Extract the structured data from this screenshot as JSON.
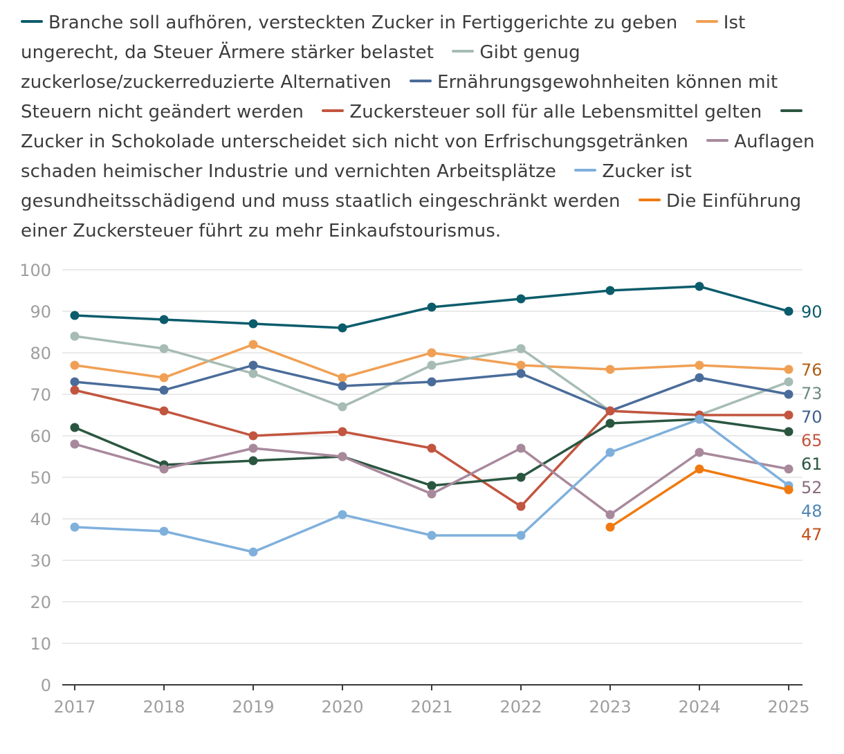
{
  "chart_data": {
    "type": "line",
    "title": "",
    "xlabel": "",
    "ylabel": "",
    "ylim": [
      0,
      100
    ],
    "yticks": [
      0,
      10,
      20,
      30,
      40,
      50,
      60,
      70,
      80,
      90,
      100
    ],
    "grid": true,
    "legend_position": "top",
    "categories": [
      "2017",
      "2018",
      "2019",
      "2020",
      "2021",
      "2022",
      "2023",
      "2024",
      "2025"
    ],
    "series": [
      {
        "name": "Branche soll aufhören, versteckten Zucker in Fertiggerichte zu geben",
        "color": "#0b5c6b",
        "label_color": "#0b5c6b",
        "end_label": "90",
        "values": [
          89,
          88,
          87,
          86,
          91,
          93,
          95,
          96,
          90
        ]
      },
      {
        "name": "Ist ungerecht, da Steuer Ärmere stärker belastet",
        "color": "#f0a055",
        "label_color": "#b0601a",
        "end_label": "76",
        "values": [
          77,
          74,
          82,
          74,
          80,
          77,
          76,
          77,
          76
        ]
      },
      {
        "name": "Gibt genug zuckerlose/zuckerreduzierte Alternativen",
        "color": "#a6bcb4",
        "label_color": "#6f8a80",
        "end_label": "73",
        "values": [
          84,
          81,
          75,
          67,
          77,
          81,
          66,
          65,
          73
        ]
      },
      {
        "name": "Ernährungsgewohnheiten können mit Steuern nicht geändert werden",
        "color": "#4a6c9a",
        "label_color": "#3f5f90",
        "end_label": "70",
        "values": [
          73,
          71,
          77,
          72,
          73,
          75,
          66,
          74,
          70
        ]
      },
      {
        "name": "Zuckersteuer soll für alle Lebensmittel gelten",
        "color": "#c2553f",
        "label_color": "#c2553f",
        "end_label": "65",
        "values": [
          71,
          66,
          60,
          61,
          57,
          43,
          66,
          65,
          65
        ]
      },
      {
        "name": "Zucker in Schokolade unterscheidet sich nicht von Erfrischungsgetränken",
        "color": "#2a5640",
        "label_color": "#2a5640",
        "end_label": "61",
        "values": [
          62,
          53,
          54,
          55,
          48,
          50,
          63,
          64,
          61
        ]
      },
      {
        "name": "Auflagen schaden heimischer Industrie und vernichten Arbeitsplätze",
        "color": "#a8899c",
        "label_color": "#8c6c80",
        "end_label": "52",
        "values": [
          58,
          52,
          57,
          55,
          46,
          57,
          41,
          56,
          52
        ]
      },
      {
        "name": "Zucker ist gesundheitsschädigend und muss staatlich eingeschränkt werden",
        "color": "#7fb0dc",
        "label_color": "#4f86b4",
        "end_label": "48",
        "values": [
          38,
          37,
          32,
          41,
          36,
          36,
          56,
          64,
          48
        ]
      },
      {
        "name": "Die Einführung einer Zuckersteuer führt zu mehr Einkaufstourismus.",
        "color": "#f07a10",
        "label_color": "#c2501c",
        "end_label": "47",
        "values": [
          null,
          null,
          null,
          null,
          null,
          null,
          38,
          52,
          47
        ]
      }
    ]
  }
}
